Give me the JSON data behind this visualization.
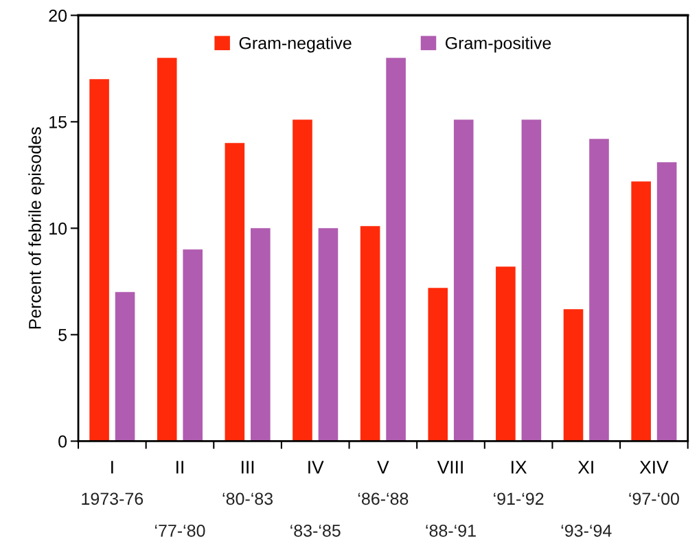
{
  "chart_data": {
    "type": "bar",
    "ylabel": "Percent of febrile episodes",
    "categories": [
      "I",
      "II",
      "III",
      "IV",
      "V",
      "VIII",
      "IX",
      "XI",
      "XIV"
    ],
    "series": [
      {
        "name": "Gram-negative",
        "color": "#ff2a0a",
        "values": [
          17,
          18,
          14,
          15.1,
          10.1,
          7.2,
          8.2,
          6.2,
          12.2
        ]
      },
      {
        "name": "Gram-positive",
        "color": "#b05cb0",
        "values": [
          7,
          9,
          10,
          10,
          18,
          15.1,
          15.1,
          14.2,
          13.1
        ]
      }
    ],
    "ylim": [
      0,
      20
    ],
    "yticks": [
      0,
      5,
      10,
      15,
      20
    ],
    "grid": false,
    "legend": "top",
    "annotations": [
      "1973-76",
      "‘77-‘80",
      "‘80-‘83",
      "‘83-‘85",
      "‘86-‘88",
      "‘88-‘91",
      "‘91-‘92",
      "‘93-‘94",
      "‘97-‘00"
    ]
  }
}
